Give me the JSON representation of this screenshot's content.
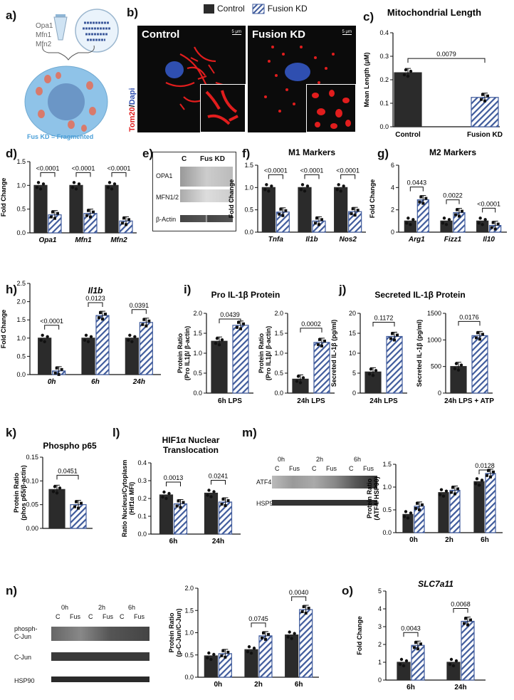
{
  "panels": {
    "a": "a)",
    "b": "b)",
    "c": "c)",
    "d": "d)",
    "e": "e)",
    "f": "f)",
    "g": "g)",
    "h": "h)",
    "i": "i)",
    "j": "j)",
    "k": "k)",
    "l": "l)",
    "m": "m)",
    "n": "n)",
    "o": "o)"
  },
  "schematic": {
    "genes": [
      "Opa1",
      "Mfn1",
      "Mfn2"
    ],
    "caption": "Fus KD = Fragmented"
  },
  "legend": {
    "control": "Control",
    "fusion": "Fusion KD"
  },
  "microscopy": {
    "control_label": "Control",
    "fusion_label": "Fusion KD",
    "scale": "5 μm",
    "stain_red": "Tom20",
    "stain_sep": "/",
    "stain_blue": "Dapi"
  },
  "blot_e": {
    "headers": [
      "C",
      "Fus KD"
    ],
    "rows": [
      "OPA1",
      "MFN1/2",
      "β-Actin"
    ]
  },
  "blot_m": {
    "times": [
      "0h",
      "2h",
      "6h"
    ],
    "lanes": [
      "C",
      "Fus",
      "C",
      "Fus",
      "C",
      "Fus"
    ],
    "rows": [
      "ATF4",
      "HSP90"
    ]
  },
  "blot_n": {
    "times": [
      "0h",
      "2h",
      "6h"
    ],
    "lanes": [
      "C",
      "Fus",
      "C",
      "Fus",
      "C",
      "Fus"
    ],
    "rows": [
      "phosph-\nC-Jun",
      "C-Jun",
      "HSP90"
    ]
  },
  "colors": {
    "control": "#2b2b2b",
    "fusion_stripe": "#3f5b9c",
    "fusion_bg": "#ffffff",
    "red_stain": "#e11d1d",
    "blue_stain": "#2f4fb0",
    "cell_body": "#8fc3e8"
  },
  "chart_data": [
    {
      "id": "c",
      "type": "bar",
      "title": "Mitochondrial Length",
      "ylabel": "Mean Length (μM)",
      "ylim": [
        0,
        0.4
      ],
      "yticks": [
        "0.0",
        "0.1",
        "0.2",
        "0.3",
        "0.4"
      ],
      "categories": [
        "Control",
        "Fusion KD"
      ],
      "values": [
        0.23,
        0.125
      ],
      "errors": [
        0.02,
        0.01
      ],
      "pvalues": [
        {
          "from": 0,
          "to": 1,
          "text": "0.0079"
        }
      ]
    },
    {
      "id": "d",
      "type": "bar",
      "title": "",
      "ylabel": "Fold Change",
      "ylim": [
        0,
        1.5
      ],
      "yticks": [
        "0.0",
        "0.5",
        "1.0",
        "1.5"
      ],
      "groups": [
        "Opa1",
        "Mfn1",
        "Mfn2"
      ],
      "series": [
        {
          "values": [
            1.0,
            1.0,
            1.0
          ]
        },
        {
          "values": [
            0.38,
            0.41,
            0.25
          ]
        }
      ],
      "pvalues": [
        "<0.0001",
        "<0.0001",
        "<0.0001"
      ]
    },
    {
      "id": "f",
      "type": "bar",
      "title": "M1 Markers",
      "ylabel": "Fold Change",
      "ylim": [
        0,
        1.5
      ],
      "yticks": [
        "0.0",
        "0.5",
        "1.0",
        "1.5"
      ],
      "groups": [
        "Tnfa",
        "Il1b",
        "Nos2"
      ],
      "series": [
        {
          "values": [
            1.0,
            1.0,
            1.0
          ]
        },
        {
          "values": [
            0.45,
            0.25,
            0.46
          ]
        }
      ],
      "pvalues": [
        "<0.0001",
        "<0.0001",
        "<0.0001"
      ]
    },
    {
      "id": "g",
      "type": "bar",
      "title": "M2 Markers",
      "ylabel": "Fold Change",
      "ylim": [
        0,
        6
      ],
      "yticks": [
        "0",
        "2",
        "4",
        "6"
      ],
      "groups": [
        "Arg1",
        "Fizz1",
        "Il10"
      ],
      "series": [
        {
          "values": [
            1.0,
            1.0,
            1.0
          ]
        },
        {
          "values": [
            2.9,
            1.75,
            0.6
          ]
        }
      ],
      "pvalues": [
        "0.0443",
        "0.0022",
        "<0.0001"
      ]
    },
    {
      "id": "h",
      "type": "bar",
      "title": "Il1b",
      "ylabel": "Fold Change",
      "ylim": [
        0,
        2.5
      ],
      "yticks": [
        "0.0",
        "0.5",
        "1.0",
        "1.5",
        "2.0",
        "2.5"
      ],
      "groups": [
        "0h",
        "6h",
        "24h"
      ],
      "series": [
        {
          "values": [
            1.0,
            1.0,
            1.0
          ]
        },
        {
          "values": [
            0.1,
            1.62,
            1.43
          ]
        }
      ],
      "pvalues": [
        "<0.0001",
        "0.0123",
        "0.0391"
      ]
    },
    {
      "id": "i1",
      "type": "bar",
      "title": "Pro IL-1β Protein",
      "ylabel": "Protein Ratio\n(Pro IL1β/ β-actin)",
      "xlabel": "6h LPS",
      "ylim": [
        0,
        2.0
      ],
      "yticks": [
        "0.0",
        "0.5",
        "1.0",
        "1.5",
        "2.0"
      ],
      "values": [
        1.3,
        1.7
      ],
      "pvalue": "0.0439"
    },
    {
      "id": "i2",
      "type": "bar",
      "title": "",
      "ylabel": "Protein Ratio\n(Pro IL1β/ β-actin)",
      "xlabel": "24h LPS",
      "ylim": [
        0,
        2.0
      ],
      "yticks": [
        "0.0",
        "0.5",
        "1.0",
        "1.5",
        "2.0"
      ],
      "values": [
        0.35,
        1.27
      ],
      "pvalue": "0.0002"
    },
    {
      "id": "j1",
      "type": "bar",
      "title": "Secreted IL-1β Protein",
      "ylabel": "Secreted IL-1β (pg/ml)",
      "xlabel": "24h LPS",
      "ylim": [
        0,
        20
      ],
      "yticks": [
        "0",
        "5",
        "10",
        "15",
        "20"
      ],
      "values": [
        5.3,
        14.2
      ],
      "pvalue": "0.1172"
    },
    {
      "id": "j2",
      "type": "bar",
      "title": "",
      "ylabel": "Secreted IL-1β (pg/ml)",
      "xlabel": "24h LPS + ATP",
      "ylim": [
        0,
        1500
      ],
      "yticks": [
        "0",
        "500",
        "1000",
        "1500"
      ],
      "values": [
        500,
        1080
      ],
      "pvalue": "0.0176"
    },
    {
      "id": "k",
      "type": "bar",
      "title": "Phospho p65",
      "ylabel": "Protein Ratio\n(phos p65/β-actin)",
      "ylim": [
        0,
        0.15
      ],
      "yticks": [
        "0.00",
        "0.05",
        "0.10",
        "0.15"
      ],
      "values": [
        0.082,
        0.05
      ],
      "pvalue": "0.0451"
    },
    {
      "id": "l",
      "type": "bar",
      "title": "HIF1α Nuclear\nTranslocation",
      "ylabel": "Ratio Nucleus/Cytoplasm\n(Hif1α MFI)",
      "ylim": [
        0,
        0.4
      ],
      "yticks": [
        "0.0",
        "0.1",
        "0.2",
        "0.3",
        "0.4"
      ],
      "groups": [
        "6h",
        "24h"
      ],
      "series": [
        {
          "values": [
            0.22,
            0.23
          ]
        },
        {
          "values": [
            0.17,
            0.18
          ]
        }
      ],
      "pvalues": [
        "0.0013",
        "0.0241"
      ]
    },
    {
      "id": "m",
      "type": "bar",
      "title": "",
      "ylabel": "Protein Ratio\n(ATF4/ HSP90)",
      "ylim": [
        0,
        1.5
      ],
      "yticks": [
        "0.0",
        "0.5",
        "1.0",
        "1.5"
      ],
      "groups": [
        "0h",
        "2h",
        "6h"
      ],
      "series": [
        {
          "values": [
            0.4,
            0.88,
            1.12
          ]
        },
        {
          "values": [
            0.58,
            0.93,
            1.3
          ]
        }
      ],
      "pvalues": [
        "",
        "",
        "0.0128"
      ]
    },
    {
      "id": "n",
      "type": "bar",
      "title": "",
      "ylabel": "Protein Ratio\n(p-C-Jun/C-Jun)",
      "ylim": [
        0,
        2.0
      ],
      "yticks": [
        "0.0",
        "0.5",
        "1.0",
        "1.5",
        "2.0"
      ],
      "groups": [
        "0h",
        "2h",
        "6h"
      ],
      "series": [
        {
          "values": [
            0.48,
            0.62,
            0.95
          ]
        },
        {
          "values": [
            0.53,
            0.93,
            1.52
          ]
        }
      ],
      "pvalues": [
        "",
        "0.0745",
        "0.0040"
      ]
    },
    {
      "id": "o",
      "type": "bar",
      "title": "SLC7a11",
      "ylabel": "Fold Change",
      "ylim": [
        0,
        5
      ],
      "yticks": [
        "0",
        "1",
        "2",
        "3",
        "4",
        "5"
      ],
      "groups": [
        "6h",
        "24h"
      ],
      "series": [
        {
          "values": [
            1.0,
            1.0
          ]
        },
        {
          "values": [
            1.95,
            3.3
          ]
        }
      ],
      "pvalues": [
        "0.0043",
        "0.0068"
      ]
    }
  ]
}
